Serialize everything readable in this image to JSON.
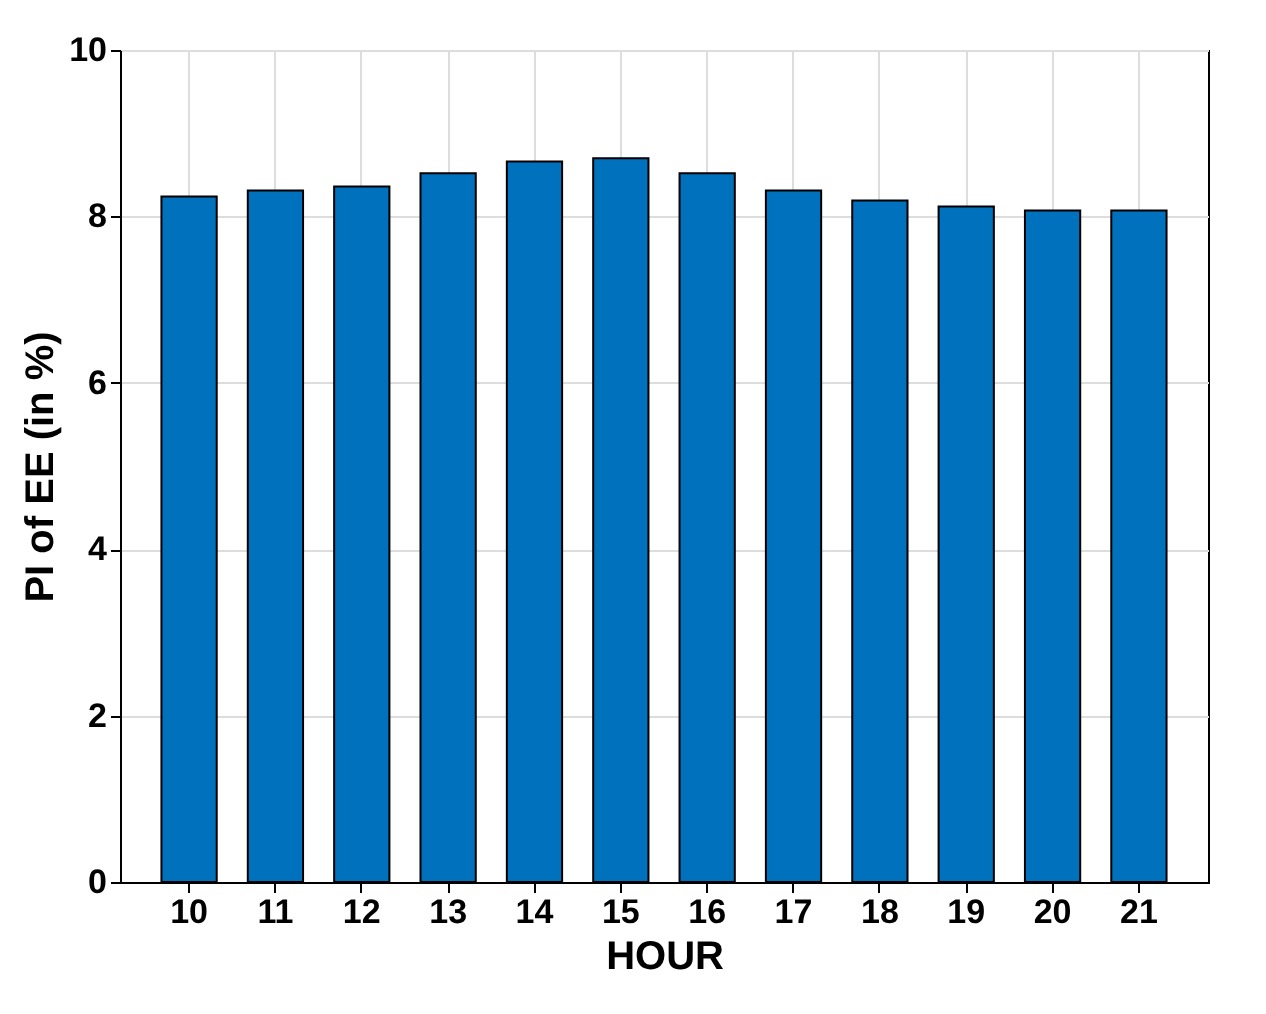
{
  "chart_data": {
    "type": "bar",
    "xlabel": "HOUR",
    "ylabel": "PI of EE (in %)",
    "categories": [
      "10",
      "11",
      "12",
      "13",
      "14",
      "15",
      "16",
      "17",
      "18",
      "19",
      "20",
      "21"
    ],
    "values": [
      8.24,
      8.31,
      8.36,
      8.52,
      8.66,
      8.7,
      8.52,
      8.31,
      8.19,
      8.12,
      8.07,
      8.07
    ],
    "color": "#0072bd",
    "ylim": [
      0,
      10
    ],
    "yticks": [
      0,
      2,
      4,
      6,
      8,
      10
    ],
    "grid": true
  }
}
